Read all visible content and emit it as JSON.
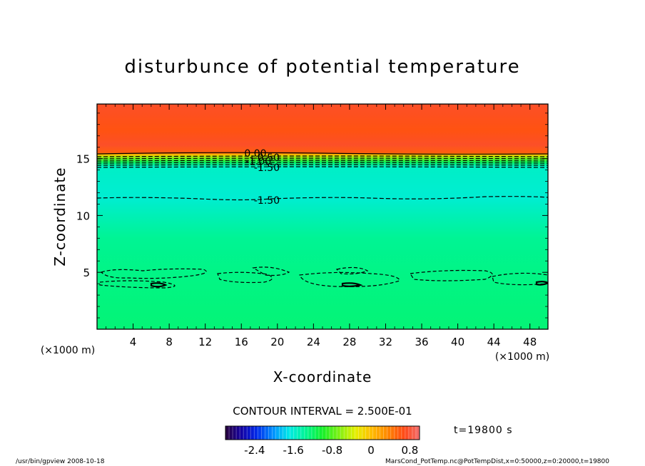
{
  "chart_data": {
    "type": "heatmap",
    "title": "disturbunce of potential temperature",
    "xlabel": "X-coordinate",
    "ylabel": "Z-coordinate",
    "x_unit": "(×1000 m)",
    "x_ticks": [
      4,
      8,
      12,
      16,
      20,
      24,
      28,
      32,
      36,
      40,
      44,
      48
    ],
    "y_ticks": [
      5,
      10,
      15
    ],
    "xlim": [
      0,
      50
    ],
    "ylim": [
      0,
      19.8
    ],
    "contour_labels": [
      "0.00",
      "-0.50",
      "-1.00",
      "-1.50",
      "-1.50"
    ],
    "contour_interval_text": "CONTOUR INTERVAL = 2.500E-01",
    "colorbar": {
      "ticks": [
        "-2.4",
        "-1.6",
        "-0.8",
        "0",
        "0.8"
      ],
      "tick_values": [
        -2.4,
        -1.6,
        -0.8,
        0,
        0.8
      ],
      "range": [
        -3.0,
        1.0
      ]
    },
    "field_profile": [
      {
        "z": 19.8,
        "value": 0.75
      },
      {
        "z": 17.5,
        "value": 0.62
      },
      {
        "z": 16.2,
        "value": 0.75
      },
      {
        "z": 15.5,
        "value": 0.55
      },
      {
        "z": 15.35,
        "value": 0.0
      },
      {
        "z": 15.1,
        "value": -0.6
      },
      {
        "z": 14.7,
        "value": -1.15
      },
      {
        "z": 14.3,
        "value": -1.55
      },
      {
        "z": 11.6,
        "value": -1.6
      },
      {
        "z": 8.0,
        "value": -1.35
      },
      {
        "z": 5.0,
        "value": -1.3
      },
      {
        "z": 0.0,
        "value": -1.25
      }
    ],
    "time_label": "t=19800 s"
  },
  "footer": {
    "left": "/usr/bin/gpview   2008-10-18",
    "right": "MarsCond_PotTemp.nc@PotTempDist,x=0:50000,z=0:20000,t=19800"
  }
}
